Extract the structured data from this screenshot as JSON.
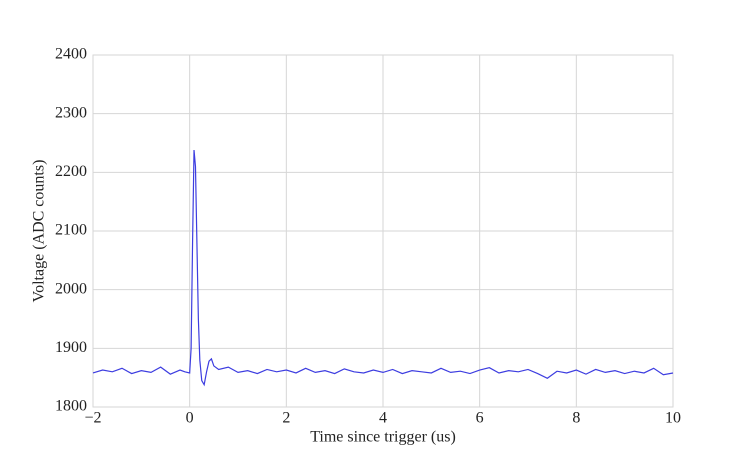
{
  "chart_data": {
    "type": "line",
    "xlabel": "Time since trigger (us)",
    "ylabel": "Voltage (ADC counts)",
    "x": [
      -2.0,
      -1.8,
      -1.6,
      -1.4,
      -1.2,
      -1.0,
      -0.8,
      -0.6,
      -0.4,
      -0.2,
      -0.1,
      0,
      0.03,
      0.06,
      0.09,
      0.12,
      0.15,
      0.18,
      0.21,
      0.25,
      0.3,
      0.35,
      0.4,
      0.45,
      0.5,
      0.6,
      0.8,
      1.0,
      1.2,
      1.4,
      1.6,
      1.8,
      2.0,
      2.2,
      2.4,
      2.6,
      2.8,
      3.0,
      3.2,
      3.4,
      3.6,
      3.8,
      4.0,
      4.2,
      4.4,
      4.6,
      4.8,
      5.0,
      5.2,
      5.4,
      5.6,
      5.8,
      6.0,
      6.2,
      6.4,
      6.6,
      6.8,
      7.0,
      7.2,
      7.4,
      7.6,
      7.8,
      8.0,
      8.2,
      8.4,
      8.6,
      8.8,
      9.0,
      9.2,
      9.4,
      9.6,
      9.8,
      10.0
    ],
    "series": [
      {
        "color": "#3d3de0",
        "values": [
          1858,
          1863,
          1860,
          1866,
          1857,
          1862,
          1859,
          1868,
          1856,
          1863,
          1860,
          1858,
          1900,
          2080,
          2238,
          2210,
          2080,
          1950,
          1880,
          1845,
          1838,
          1860,
          1878,
          1882,
          1870,
          1864,
          1868,
          1859,
          1862,
          1857,
          1864,
          1860,
          1863,
          1858,
          1866,
          1859,
          1862,
          1857,
          1865,
          1860,
          1858,
          1863,
          1859,
          1864,
          1857,
          1862,
          1860,
          1858,
          1866,
          1859,
          1861,
          1857,
          1863,
          1867,
          1858,
          1862,
          1860,
          1864,
          1857,
          1849,
          1861,
          1858,
          1863,
          1856,
          1864,
          1859,
          1862,
          1857,
          1861,
          1858,
          1866,
          1855,
          1858
        ]
      }
    ],
    "xlim": [
      -2,
      10
    ],
    "ylim": [
      1800,
      2400
    ],
    "xticks": [
      {
        "value": -2,
        "label": "−2"
      },
      0,
      2,
      4,
      6,
      8,
      10
    ],
    "yticks": [
      1800,
      1900,
      2000,
      2100,
      2200,
      2300,
      2400
    ],
    "grid": true
  }
}
